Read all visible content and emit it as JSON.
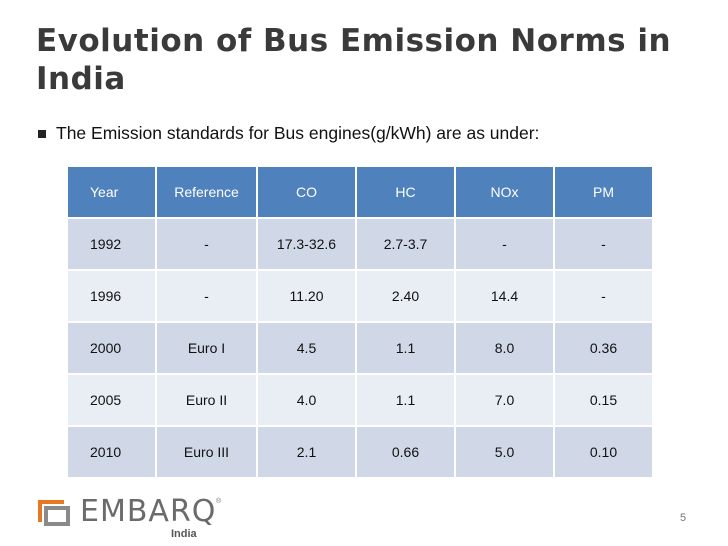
{
  "slide": {
    "title": "Evolution of Bus Emission Norms in India",
    "bullet": "The Emission standards for Bus engines(g/kWh) are as under:",
    "page_number": "5"
  },
  "table": {
    "headers": [
      "Year",
      "Reference",
      "CO",
      "HC",
      "NOx",
      "PM"
    ],
    "rows": [
      [
        "1992",
        "-",
        "17.3-32.6",
        "2.7-3.7",
        "-",
        "-"
      ],
      [
        "1996",
        "-",
        "11.20",
        "2.40",
        "14.4",
        "-"
      ],
      [
        "2000",
        "Euro I",
        "4.5",
        "1.1",
        "8.0",
        "0.36"
      ],
      [
        "2005",
        "Euro II",
        "4.0",
        "1.1",
        "7.0",
        "0.15"
      ],
      [
        "2010",
        "Euro III",
        "2.1",
        "0.66",
        "5.0",
        "0.10"
      ]
    ]
  },
  "logo": {
    "wordmark": "EMBARQ",
    "registered": "®",
    "subtitle": "India",
    "colors": {
      "orange": "#e87722",
      "gray": "#6b6b6b"
    }
  }
}
